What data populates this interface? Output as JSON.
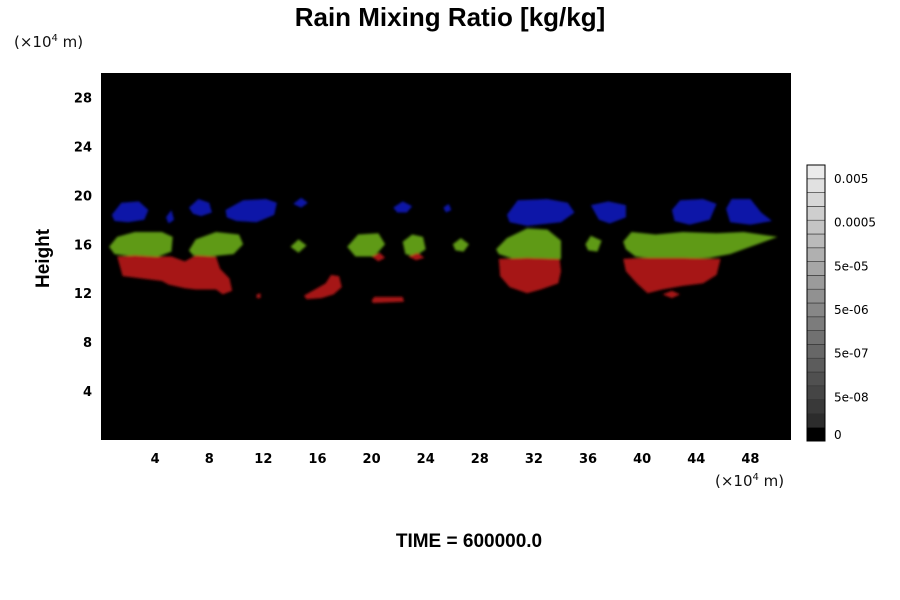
{
  "chart_data": {
    "type": "heatmap",
    "title": "Rain Mixing Ratio [kg/kg]",
    "ylabel": "Height",
    "y_unit": "(×10⁴ m)",
    "x_unit": "(×10⁴ m)",
    "x_ticks": [
      4,
      8,
      12,
      16,
      20,
      24,
      28,
      32,
      36,
      40,
      44,
      48
    ],
    "y_ticks": [
      4,
      8,
      12,
      16,
      20,
      24,
      28
    ],
    "xlim": [
      0,
      51
    ],
    "ylim": [
      0,
      30
    ],
    "background_color": "#000000",
    "colorbar": {
      "labels": [
        "0.005",
        "0.0005",
        "5e-05",
        "5e-06",
        "5e-07",
        "5e-08",
        "0"
      ],
      "levels": 20
    },
    "features": [
      {
        "color": "#0d17a8",
        "shape": [
          [
            0.8,
            18.4
          ],
          [
            1.5,
            19.4
          ],
          [
            2.8,
            19.5
          ],
          [
            3.5,
            18.8
          ],
          [
            3.2,
            18.0
          ],
          [
            2.0,
            17.8
          ],
          [
            1.0,
            17.9
          ]
        ]
      },
      {
        "color": "#0d17a8",
        "shape": [
          [
            4.8,
            18.2
          ],
          [
            5.2,
            18.8
          ],
          [
            5.4,
            18.0
          ],
          [
            5.0,
            17.7
          ]
        ]
      },
      {
        "color": "#0d17a8",
        "shape": [
          [
            6.5,
            19.0
          ],
          [
            7.2,
            19.7
          ],
          [
            8.0,
            19.4
          ],
          [
            8.2,
            18.6
          ],
          [
            7.4,
            18.3
          ],
          [
            6.8,
            18.5
          ]
        ]
      },
      {
        "color": "#0d17a8",
        "shape": [
          [
            9.2,
            18.8
          ],
          [
            10.5,
            19.6
          ],
          [
            12.2,
            19.7
          ],
          [
            13.0,
            19.4
          ],
          [
            12.8,
            18.4
          ],
          [
            11.5,
            17.8
          ],
          [
            10.0,
            17.9
          ],
          [
            9.3,
            18.2
          ]
        ]
      },
      {
        "color": "#0d17a8",
        "shape": [
          [
            14.2,
            19.3
          ],
          [
            14.8,
            19.8
          ],
          [
            15.3,
            19.4
          ],
          [
            14.8,
            19.0
          ]
        ]
      },
      {
        "color": "#0d17a8",
        "shape": [
          [
            21.6,
            19.0
          ],
          [
            22.3,
            19.5
          ],
          [
            23.0,
            19.1
          ],
          [
            22.6,
            18.6
          ],
          [
            21.9,
            18.6
          ]
        ]
      },
      {
        "color": "#0d17a8",
        "shape": [
          [
            25.3,
            19.0
          ],
          [
            25.7,
            19.3
          ],
          [
            25.9,
            18.8
          ],
          [
            25.5,
            18.6
          ]
        ]
      },
      {
        "color": "#0d17a8",
        "shape": [
          [
            30.0,
            18.4
          ],
          [
            30.8,
            19.6
          ],
          [
            33.0,
            19.7
          ],
          [
            34.5,
            19.4
          ],
          [
            35.0,
            18.6
          ],
          [
            34.0,
            17.8
          ],
          [
            31.5,
            17.5
          ],
          [
            30.2,
            17.8
          ]
        ]
      },
      {
        "color": "#0d17a8",
        "shape": [
          [
            36.2,
            19.2
          ],
          [
            37.5,
            19.5
          ],
          [
            38.8,
            19.2
          ],
          [
            38.8,
            18.2
          ],
          [
            37.6,
            17.7
          ],
          [
            36.8,
            18.0
          ]
        ]
      },
      {
        "color": "#0d17a8",
        "shape": [
          [
            42.2,
            18.8
          ],
          [
            42.8,
            19.6
          ],
          [
            44.5,
            19.7
          ],
          [
            45.5,
            19.3
          ],
          [
            45.0,
            18.0
          ],
          [
            43.5,
            17.6
          ],
          [
            42.4,
            17.9
          ]
        ]
      },
      {
        "color": "#0d17a8",
        "shape": [
          [
            46.2,
            18.9
          ],
          [
            46.6,
            19.7
          ],
          [
            48.0,
            19.7
          ],
          [
            48.8,
            18.6
          ],
          [
            49.6,
            17.9
          ],
          [
            48.0,
            17.6
          ],
          [
            46.5,
            17.8
          ]
        ]
      },
      {
        "color": "#5e9a18",
        "shape": [
          [
            0.6,
            15.8
          ],
          [
            1.2,
            16.6
          ],
          [
            2.5,
            17.0
          ],
          [
            4.5,
            17.0
          ],
          [
            5.3,
            16.6
          ],
          [
            5.2,
            15.4
          ],
          [
            4.0,
            14.9
          ],
          [
            2.5,
            15.0
          ],
          [
            1.0,
            15.2
          ]
        ]
      },
      {
        "color": "#5e9a18",
        "shape": [
          [
            6.5,
            15.5
          ],
          [
            7.0,
            16.4
          ],
          [
            8.5,
            17.0
          ],
          [
            10.2,
            16.8
          ],
          [
            10.5,
            16.0
          ],
          [
            9.8,
            15.2
          ],
          [
            8.0,
            15.0
          ],
          [
            6.8,
            15.1
          ]
        ]
      },
      {
        "color": "#5e9a18",
        "shape": [
          [
            14.0,
            15.8
          ],
          [
            14.6,
            16.4
          ],
          [
            15.2,
            15.9
          ],
          [
            14.6,
            15.3
          ]
        ]
      },
      {
        "color": "#5e9a18",
        "shape": [
          [
            18.2,
            15.8
          ],
          [
            19.0,
            16.8
          ],
          [
            20.5,
            16.9
          ],
          [
            21.0,
            16.0
          ],
          [
            20.2,
            15.0
          ],
          [
            18.8,
            15.0
          ]
        ]
      },
      {
        "color": "#5e9a18",
        "shape": [
          [
            22.3,
            16.2
          ],
          [
            23.0,
            16.8
          ],
          [
            23.8,
            16.6
          ],
          [
            24.0,
            15.6
          ],
          [
            23.2,
            15.0
          ],
          [
            22.5,
            15.2
          ]
        ]
      },
      {
        "color": "#5e9a18",
        "shape": [
          [
            26.0,
            16.0
          ],
          [
            26.6,
            16.5
          ],
          [
            27.2,
            16.0
          ],
          [
            26.8,
            15.4
          ],
          [
            26.2,
            15.5
          ]
        ]
      },
      {
        "color": "#5e9a18",
        "shape": [
          [
            29.2,
            15.6
          ],
          [
            30.0,
            16.5
          ],
          [
            31.5,
            17.3
          ],
          [
            33.0,
            17.2
          ],
          [
            34.0,
            16.3
          ],
          [
            34.0,
            14.8
          ],
          [
            32.0,
            14.4
          ],
          [
            30.5,
            14.8
          ],
          [
            29.4,
            15.2
          ]
        ]
      },
      {
        "color": "#5e9a18",
        "shape": [
          [
            35.8,
            16.0
          ],
          [
            36.2,
            16.7
          ],
          [
            37.0,
            16.3
          ],
          [
            36.7,
            15.4
          ],
          [
            36.0,
            15.5
          ]
        ]
      },
      {
        "color": "#5e9a18",
        "shape": [
          [
            38.6,
            16.2
          ],
          [
            39.2,
            17.0
          ],
          [
            41.0,
            16.8
          ],
          [
            43.0,
            17.0
          ],
          [
            45.5,
            16.9
          ],
          [
            47.5,
            17.0
          ],
          [
            50.0,
            16.6
          ],
          [
            48.0,
            15.8
          ],
          [
            46.5,
            15.2
          ],
          [
            45.0,
            14.9
          ],
          [
            42.0,
            14.7
          ],
          [
            39.5,
            15.0
          ],
          [
            38.8,
            15.6
          ]
        ]
      },
      {
        "color": "#a61416",
        "shape": [
          [
            1.2,
            15.0
          ],
          [
            1.6,
            13.4
          ],
          [
            3.0,
            13.2
          ],
          [
            4.5,
            13.0
          ],
          [
            5.0,
            12.7
          ],
          [
            6.2,
            12.4
          ],
          [
            7.0,
            12.3
          ],
          [
            8.5,
            12.3
          ],
          [
            9.0,
            11.9
          ],
          [
            9.7,
            12.2
          ],
          [
            9.5,
            13.2
          ],
          [
            8.8,
            14.0
          ],
          [
            8.5,
            15.0
          ],
          [
            7.0,
            15.1
          ],
          [
            6.2,
            14.6
          ],
          [
            5.2,
            15.0
          ],
          [
            4.0,
            15.0
          ],
          [
            2.5,
            15.1
          ]
        ]
      },
      {
        "color": "#a61416",
        "shape": [
          [
            11.5,
            11.9
          ],
          [
            11.8,
            12.0
          ],
          [
            11.8,
            11.6
          ],
          [
            11.5,
            11.6
          ]
        ]
      },
      {
        "color": "#a61416",
        "shape": [
          [
            15.0,
            11.8
          ],
          [
            15.8,
            12.3
          ],
          [
            16.6,
            12.8
          ],
          [
            17.0,
            13.5
          ],
          [
            17.6,
            13.4
          ],
          [
            17.8,
            12.5
          ],
          [
            17.2,
            11.9
          ],
          [
            16.3,
            11.6
          ],
          [
            15.2,
            11.5
          ]
        ]
      },
      {
        "color": "#a61416",
        "shape": [
          [
            20.0,
            15.0
          ],
          [
            20.5,
            14.6
          ],
          [
            21.0,
            14.9
          ],
          [
            20.6,
            15.3
          ]
        ]
      },
      {
        "color": "#a61416",
        "shape": [
          [
            22.7,
            15.0
          ],
          [
            23.3,
            14.7
          ],
          [
            23.9,
            14.9
          ],
          [
            23.4,
            15.3
          ]
        ]
      },
      {
        "color": "#a61416",
        "shape": [
          [
            20.0,
            11.4
          ],
          [
            20.2,
            11.7
          ],
          [
            22.3,
            11.7
          ],
          [
            22.4,
            11.3
          ],
          [
            20.1,
            11.2
          ]
        ]
      },
      {
        "color": "#a61416",
        "shape": [
          [
            29.4,
            14.8
          ],
          [
            29.5,
            13.4
          ],
          [
            30.2,
            12.5
          ],
          [
            31.5,
            12.0
          ],
          [
            32.5,
            12.3
          ],
          [
            33.8,
            12.8
          ],
          [
            34.0,
            13.8
          ],
          [
            33.9,
            14.8
          ],
          [
            31.5,
            14.9
          ]
        ]
      },
      {
        "color": "#a61416",
        "shape": [
          [
            38.6,
            14.8
          ],
          [
            38.8,
            13.8
          ],
          [
            39.6,
            12.8
          ],
          [
            40.4,
            12.0
          ],
          [
            41.5,
            12.3
          ],
          [
            43.0,
            12.6
          ],
          [
            44.5,
            12.8
          ],
          [
            45.5,
            13.5
          ],
          [
            45.8,
            14.8
          ],
          [
            43.0,
            14.9
          ],
          [
            40.0,
            14.9
          ]
        ]
      },
      {
        "color": "#a61416",
        "shape": [
          [
            41.5,
            11.9
          ],
          [
            42.2,
            12.2
          ],
          [
            42.8,
            11.9
          ],
          [
            42.2,
            11.6
          ]
        ]
      }
    ]
  },
  "footer": {
    "time_label": "TIME = 600000.0"
  }
}
